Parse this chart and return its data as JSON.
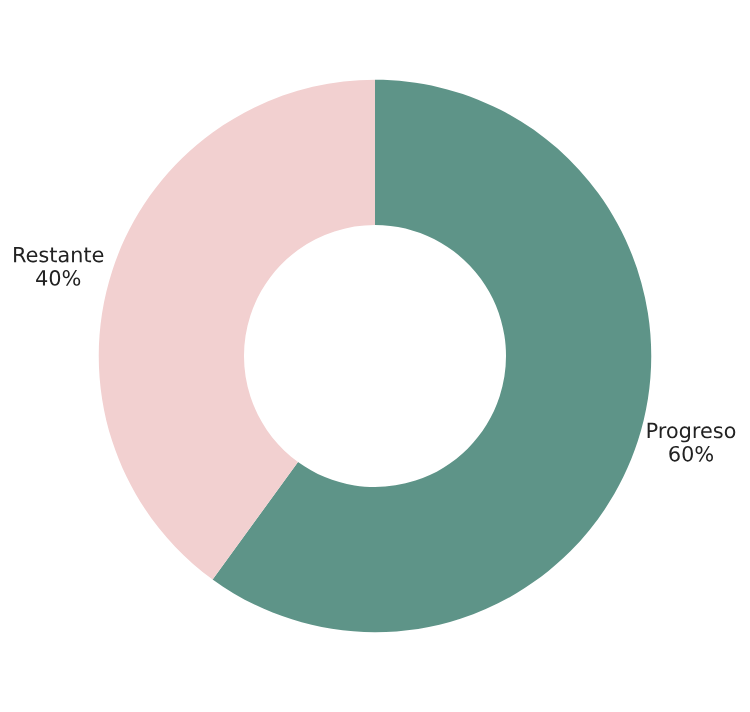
{
  "chart_data": {
    "type": "donut",
    "categories": [
      "Progreso",
      "Restante"
    ],
    "values": [
      60,
      40
    ],
    "value_labels": [
      "60%",
      "40%"
    ],
    "colors": [
      "#5e9488",
      "#f2d0d0"
    ],
    "legend": false
  }
}
